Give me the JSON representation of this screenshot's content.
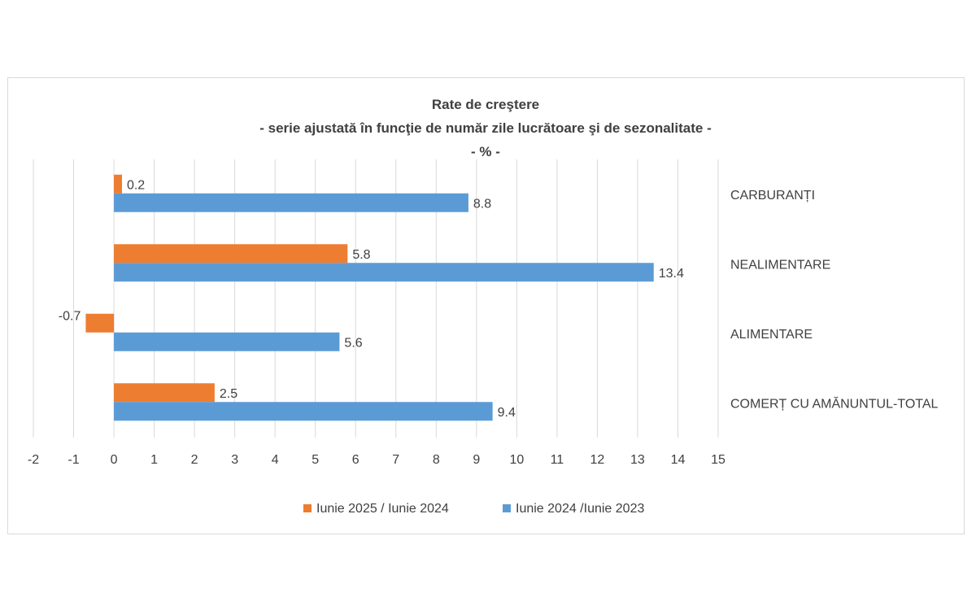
{
  "chart_data": {
    "type": "bar",
    "orientation": "horizontal",
    "title": "Rate de creştere",
    "subtitle": "- serie ajustată în funcţie de număr zile lucrătoare şi de sezonalitate -",
    "unit_line": "- % -",
    "categories": [
      "CARBURANȚI",
      "NEALIMENTARE",
      "ALIMENTARE",
      "COMERȚ CU AMĂNUNTUL-TOTAL"
    ],
    "series": [
      {
        "name": "Iunie 2025 / Iunie 2024",
        "color": "#ED7D31",
        "values": [
          0.2,
          5.8,
          -0.7,
          2.5
        ]
      },
      {
        "name": "Iunie 2024 /Iunie 2023",
        "color": "#5B9BD5",
        "values": [
          8.8,
          13.4,
          5.6,
          9.4
        ]
      }
    ],
    "data_labels": [
      [
        "0.2",
        "5.8",
        "-0.7",
        "2.5"
      ],
      [
        "8.8",
        "13.4",
        "5.6",
        "9.4"
      ]
    ],
    "xlim": [
      -2,
      15
    ],
    "ticks": [
      "-2",
      "-1",
      "0",
      "1",
      "2",
      "3",
      "4",
      "5",
      "6",
      "7",
      "8",
      "9",
      "10",
      "11",
      "12",
      "13",
      "14",
      "15"
    ],
    "grid": true,
    "legend_position": "bottom"
  }
}
